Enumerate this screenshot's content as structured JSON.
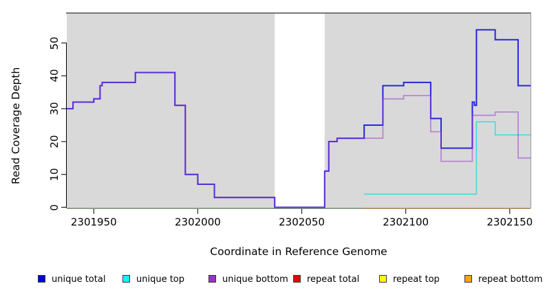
{
  "y_axis": {
    "label": "Read Coverage Depth",
    "ticks": [
      0,
      10,
      20,
      30,
      40,
      50
    ]
  },
  "x_axis": {
    "label": "Coordinate in Reference Genome",
    "ticks": [
      2301950,
      2302000,
      2302050,
      2302100,
      2302150
    ]
  },
  "legend": [
    {
      "label": "unique total",
      "color": "#0000EE"
    },
    {
      "label": "unique top",
      "color": "#00FFFF"
    },
    {
      "label": "unique bottom",
      "color": "#9932CC"
    },
    {
      "label": "repeat total",
      "color": "#EE0000"
    },
    {
      "label": "repeat top",
      "color": "#FFFF00"
    },
    {
      "label": "repeat bottom",
      "color": "#FFA500"
    }
  ],
  "chart_data": {
    "type": "line",
    "subtype": "step",
    "title": "",
    "xlabel": "Coordinate in Reference Genome",
    "ylabel": "Read Coverage Depth",
    "x_range": [
      2301937,
      2302160
    ],
    "y_range": [
      0,
      59
    ],
    "grid": false,
    "legend_position": "bottom",
    "plot_bg": "#D9D9D9",
    "gap_region": [
      2302037,
      2302061
    ],
    "frame_color": "#787878",
    "series": [
      {
        "name": "unique total",
        "color": "#0000EE",
        "line_color": "#2525DF",
        "width": 2,
        "points": [
          [
            2301937,
            30
          ],
          [
            2301940,
            32
          ],
          [
            2301950,
            33
          ],
          [
            2301953,
            37
          ],
          [
            2301954,
            38
          ],
          [
            2301970,
            41
          ],
          [
            2301989,
            31
          ],
          [
            2301994,
            10
          ],
          [
            2302000,
            7
          ],
          [
            2302008,
            3
          ],
          [
            2302037,
            0
          ],
          [
            2302061,
            11
          ],
          [
            2302063,
            20
          ],
          [
            2302067,
            21
          ],
          [
            2302080,
            25
          ],
          [
            2302089,
            37
          ],
          [
            2302099,
            38
          ],
          [
            2302112,
            27
          ],
          [
            2302117,
            18
          ],
          [
            2302132,
            32
          ],
          [
            2302133,
            31
          ],
          [
            2302134,
            54
          ],
          [
            2302143,
            51
          ],
          [
            2302154,
            37
          ]
        ]
      },
      {
        "name": "unique top",
        "color": "#00FFFF",
        "line_color": "#35DDDD",
        "width": 1.5,
        "render_from": 2302080,
        "points": [
          [
            2301937,
            0
          ],
          [
            2302080,
            4
          ],
          [
            2302134,
            26
          ],
          [
            2302143,
            22
          ]
        ]
      },
      {
        "name": "unique bottom",
        "color": "#9932CC",
        "line_color": "#9932CC",
        "opacity": 0.5,
        "width": 1.8,
        "points": [
          [
            2301937,
            30
          ],
          [
            2301940,
            32
          ],
          [
            2301950,
            33
          ],
          [
            2301953,
            37
          ],
          [
            2301954,
            38
          ],
          [
            2301970,
            41
          ],
          [
            2301989,
            31
          ],
          [
            2301994,
            10
          ],
          [
            2302000,
            7
          ],
          [
            2302008,
            3
          ],
          [
            2302037,
            0
          ],
          [
            2302061,
            11
          ],
          [
            2302063,
            20
          ],
          [
            2302067,
            21
          ],
          [
            2302089,
            33
          ],
          [
            2302099,
            34
          ],
          [
            2302112,
            23
          ],
          [
            2302117,
            14
          ],
          [
            2302132,
            28
          ],
          [
            2302143,
            29
          ],
          [
            2302154,
            15
          ]
        ]
      },
      {
        "name": "repeat total",
        "color": "#EE0000",
        "line_color": "#EE0000",
        "width": 1.2,
        "dy": 1.5,
        "points": [
          [
            2301937,
            0
          ]
        ]
      },
      {
        "name": "repeat top",
        "color": "#FFFF00",
        "line_color": "#74C476",
        "width": 1.5,
        "dy": 1.5,
        "render_to": 2302080,
        "points": [
          [
            2301937,
            0
          ]
        ]
      },
      {
        "name": "repeat bottom",
        "color": "#FFA500",
        "line_color": "#FF9712",
        "width": 1.5,
        "dy": 1.5,
        "render_from": 2302080,
        "points": [
          [
            2301937,
            0
          ]
        ]
      }
    ],
    "draw_order": [
      3,
      4,
      5,
      1,
      0,
      2
    ]
  }
}
